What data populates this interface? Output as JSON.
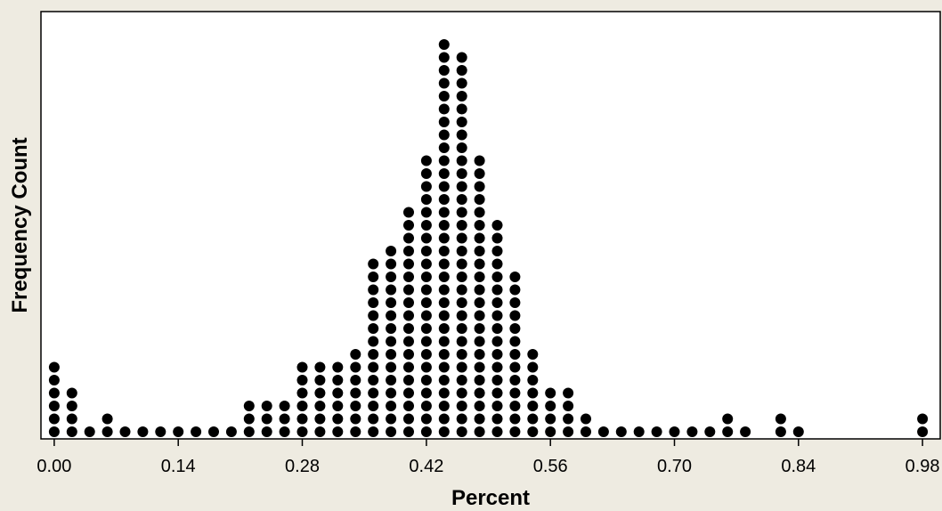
{
  "chart_data": {
    "type": "scatter",
    "subtype": "dotplot",
    "xlabel": "Percent",
    "ylabel": "Frequency Count",
    "xlim": [
      -0.015,
      1.0
    ],
    "x_ticks": [
      0.0,
      0.14,
      0.28,
      0.42,
      0.56,
      0.7,
      0.84,
      0.98
    ],
    "x_tick_labels": [
      "0.00",
      "0.14",
      "0.28",
      "0.42",
      "0.56",
      "0.70",
      "0.84",
      "0.98"
    ],
    "grid": false,
    "legend": "none",
    "colors": {
      "background": "#EEEBE1",
      "plot_area": "#FFFFFF",
      "dot": "#000000",
      "frame": "#000000"
    },
    "bins": [
      0.0,
      0.02,
      0.04,
      0.06,
      0.08,
      0.1,
      0.12,
      0.14,
      0.16,
      0.18,
      0.2,
      0.22,
      0.24,
      0.26,
      0.28,
      0.3,
      0.32,
      0.34,
      0.36,
      0.38,
      0.4,
      0.42,
      0.44,
      0.46,
      0.48,
      0.5,
      0.52,
      0.54,
      0.56,
      0.58,
      0.6,
      0.62,
      0.64,
      0.66,
      0.68,
      0.7,
      0.72,
      0.74,
      0.76,
      0.78,
      0.8,
      0.82,
      0.84,
      0.86,
      0.88,
      0.9,
      0.92,
      0.94,
      0.96,
      0.98
    ],
    "counts": [
      6,
      4,
      1,
      2,
      1,
      1,
      1,
      1,
      1,
      1,
      1,
      3,
      3,
      3,
      6,
      6,
      6,
      7,
      14,
      15,
      18,
      22,
      31,
      30,
      22,
      17,
      13,
      7,
      4,
      4,
      2,
      1,
      1,
      1,
      1,
      1,
      1,
      1,
      2,
      1,
      0,
      2,
      1,
      0,
      0,
      0,
      0,
      0,
      0,
      2
    ]
  }
}
